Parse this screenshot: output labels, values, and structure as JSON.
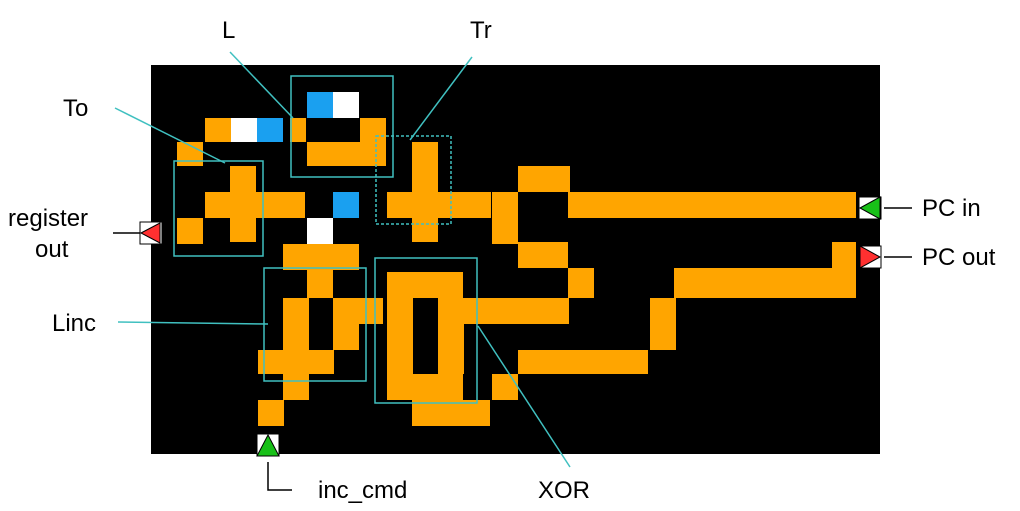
{
  "labels": {
    "L": "L",
    "Tr": "Tr",
    "To": "To",
    "register_out_line1": "register",
    "register_out_line2": "out",
    "pc_in": "PC in",
    "pc_out": "PC out",
    "linc": "Linc",
    "inc_cmd": "inc_cmd",
    "xor": "XOR"
  },
  "colors": {
    "background": "#000000",
    "wire": "#ffa500",
    "active_cell": "#1aa0f0",
    "white_cell": "#ffffff",
    "box_outline": "#40c0c0",
    "input_arrow": "#18c018",
    "output_arrow": "#ff3030",
    "leader_line": "#40c0c0"
  }
}
